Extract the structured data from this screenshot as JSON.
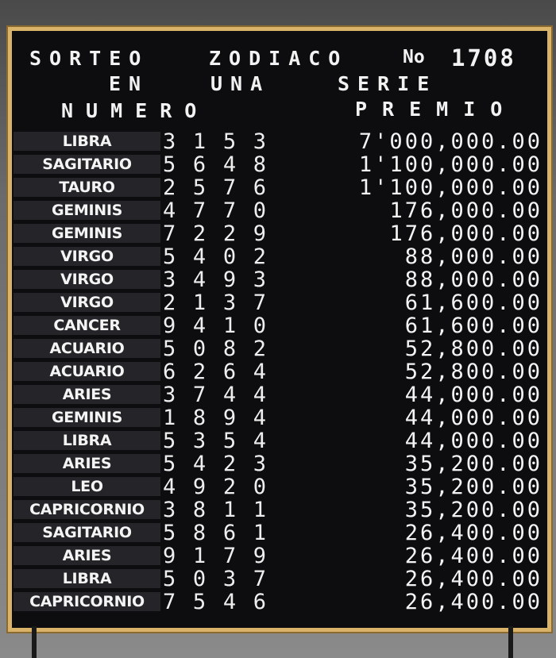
{
  "header": {
    "line1_left": "SORTEO",
    "line1_mid": "ZODIACO",
    "line1_no": "No",
    "draw_number": "1708",
    "line2_left": "EN",
    "line2_mid": "UNA",
    "line2_right": "SERIE",
    "col_number": "NUMERO",
    "col_prize": "PREMIO"
  },
  "rows": [
    {
      "sign": "LIBRA",
      "digits": [
        "3",
        "1",
        "5",
        "3"
      ],
      "prize": "7'000,000.00"
    },
    {
      "sign": "SAGITARIO",
      "digits": [
        "5",
        "6",
        "4",
        "8"
      ],
      "prize": "1'100,000.00"
    },
    {
      "sign": "TAURO",
      "digits": [
        "2",
        "5",
        "7",
        "6"
      ],
      "prize": "1'100,000.00"
    },
    {
      "sign": "GEMINIS",
      "digits": [
        "4",
        "7",
        "7",
        "0"
      ],
      "prize": "176,000.00"
    },
    {
      "sign": "GEMINIS",
      "digits": [
        "7",
        "2",
        "2",
        "9"
      ],
      "prize": "176,000.00"
    },
    {
      "sign": "VIRGO",
      "digits": [
        "5",
        "4",
        "0",
        "2"
      ],
      "prize": "88,000.00"
    },
    {
      "sign": "VIRGO",
      "digits": [
        "3",
        "4",
        "9",
        "3"
      ],
      "prize": "88,000.00"
    },
    {
      "sign": "VIRGO",
      "digits": [
        "2",
        "1",
        "3",
        "7"
      ],
      "prize": "61,600.00"
    },
    {
      "sign": "CANCER",
      "digits": [
        "9",
        "4",
        "1",
        "0"
      ],
      "prize": "61,600.00"
    },
    {
      "sign": "ACUARIO",
      "digits": [
        "5",
        "0",
        "8",
        "2"
      ],
      "prize": "52,800.00"
    },
    {
      "sign": "ACUARIO",
      "digits": [
        "6",
        "2",
        "6",
        "4"
      ],
      "prize": "52,800.00"
    },
    {
      "sign": "ARIES",
      "digits": [
        "3",
        "7",
        "4",
        "4"
      ],
      "prize": "44,000.00"
    },
    {
      "sign": "GEMINIS",
      "digits": [
        "1",
        "8",
        "9",
        "4"
      ],
      "prize": "44,000.00"
    },
    {
      "sign": "LIBRA",
      "digits": [
        "5",
        "3",
        "5",
        "4"
      ],
      "prize": "44,000.00"
    },
    {
      "sign": "ARIES",
      "digits": [
        "5",
        "4",
        "2",
        "3"
      ],
      "prize": "35,200.00"
    },
    {
      "sign": "LEO",
      "digits": [
        "4",
        "9",
        "2",
        "0"
      ],
      "prize": "35,200.00"
    },
    {
      "sign": "CAPRICORNIO",
      "digits": [
        "3",
        "8",
        "1",
        "1"
      ],
      "prize": "35,200.00"
    },
    {
      "sign": "SAGITARIO",
      "digits": [
        "5",
        "8",
        "6",
        "1"
      ],
      "prize": "26,400.00"
    },
    {
      "sign": "ARIES",
      "digits": [
        "9",
        "1",
        "7",
        "9"
      ],
      "prize": "26,400.00"
    },
    {
      "sign": "LIBRA",
      "digits": [
        "5",
        "0",
        "3",
        "7"
      ],
      "prize": "26,400.00"
    },
    {
      "sign": "CAPRICORNIO",
      "digits": [
        "7",
        "5",
        "4",
        "6"
      ],
      "prize": "26,400.00"
    }
  ],
  "colors": {
    "board": "#0d0c0f",
    "frame": "#d9b36a",
    "text": "#f2f2f2"
  }
}
